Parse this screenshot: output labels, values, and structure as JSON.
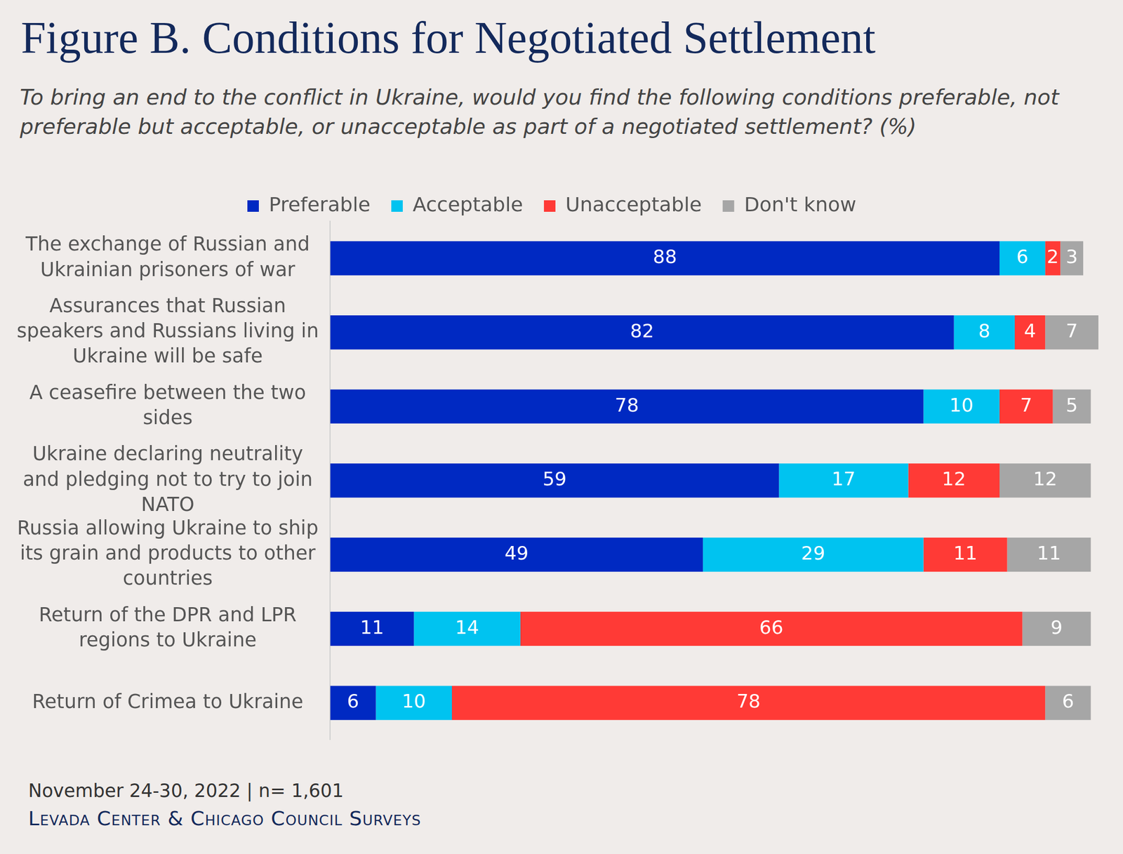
{
  "chart_data": {
    "type": "bar",
    "title": "Figure B. Conditions for Negotiated Settlement",
    "subtitle": "To bring an end to the conflict in Ukraine, would you find the following conditions preferable, not preferable but acceptable, or unacceptable as part of a negotiated settlement? (%)",
    "note": "November 24-30, 2022 | n= 1,601",
    "source": "Levada Center & Chicago Council Surveys",
    "categories": [
      "The exchange of Russian and Ukrainian prisoners of war",
      "Assurances that Russian speakers and Russians living in Ukraine will be safe",
      "A ceasefire between the two sides",
      "Ukraine declaring neutrality and pledging not to try to join NATO",
      "Russia allowing Ukraine to ship its grain and products to other countries",
      "Return of the DPR and LPR regions to Ukraine",
      "Return of Crimea to Ukraine"
    ],
    "series": [
      {
        "name": "Preferable",
        "color": "#0029c2",
        "values": [
          88,
          82,
          78,
          59,
          49,
          11,
          6
        ]
      },
      {
        "name": "Acceptable",
        "color": "#00c3f0",
        "values": [
          6,
          8,
          10,
          17,
          29,
          14,
          10
        ]
      },
      {
        "name": "Unacceptable",
        "color": "#ff3a36",
        "values": [
          2,
          4,
          7,
          12,
          11,
          66,
          78
        ]
      },
      {
        "name": "Don't know",
        "color": "#a6a6a6",
        "values": [
          3,
          7,
          5,
          12,
          11,
          9,
          6
        ]
      }
    ],
    "xlim": [
      0,
      101
    ],
    "orientation": "horizontal",
    "stacked": true,
    "data_labels": true,
    "tick_labels": "y",
    "grid": false,
    "legend": "top"
  }
}
